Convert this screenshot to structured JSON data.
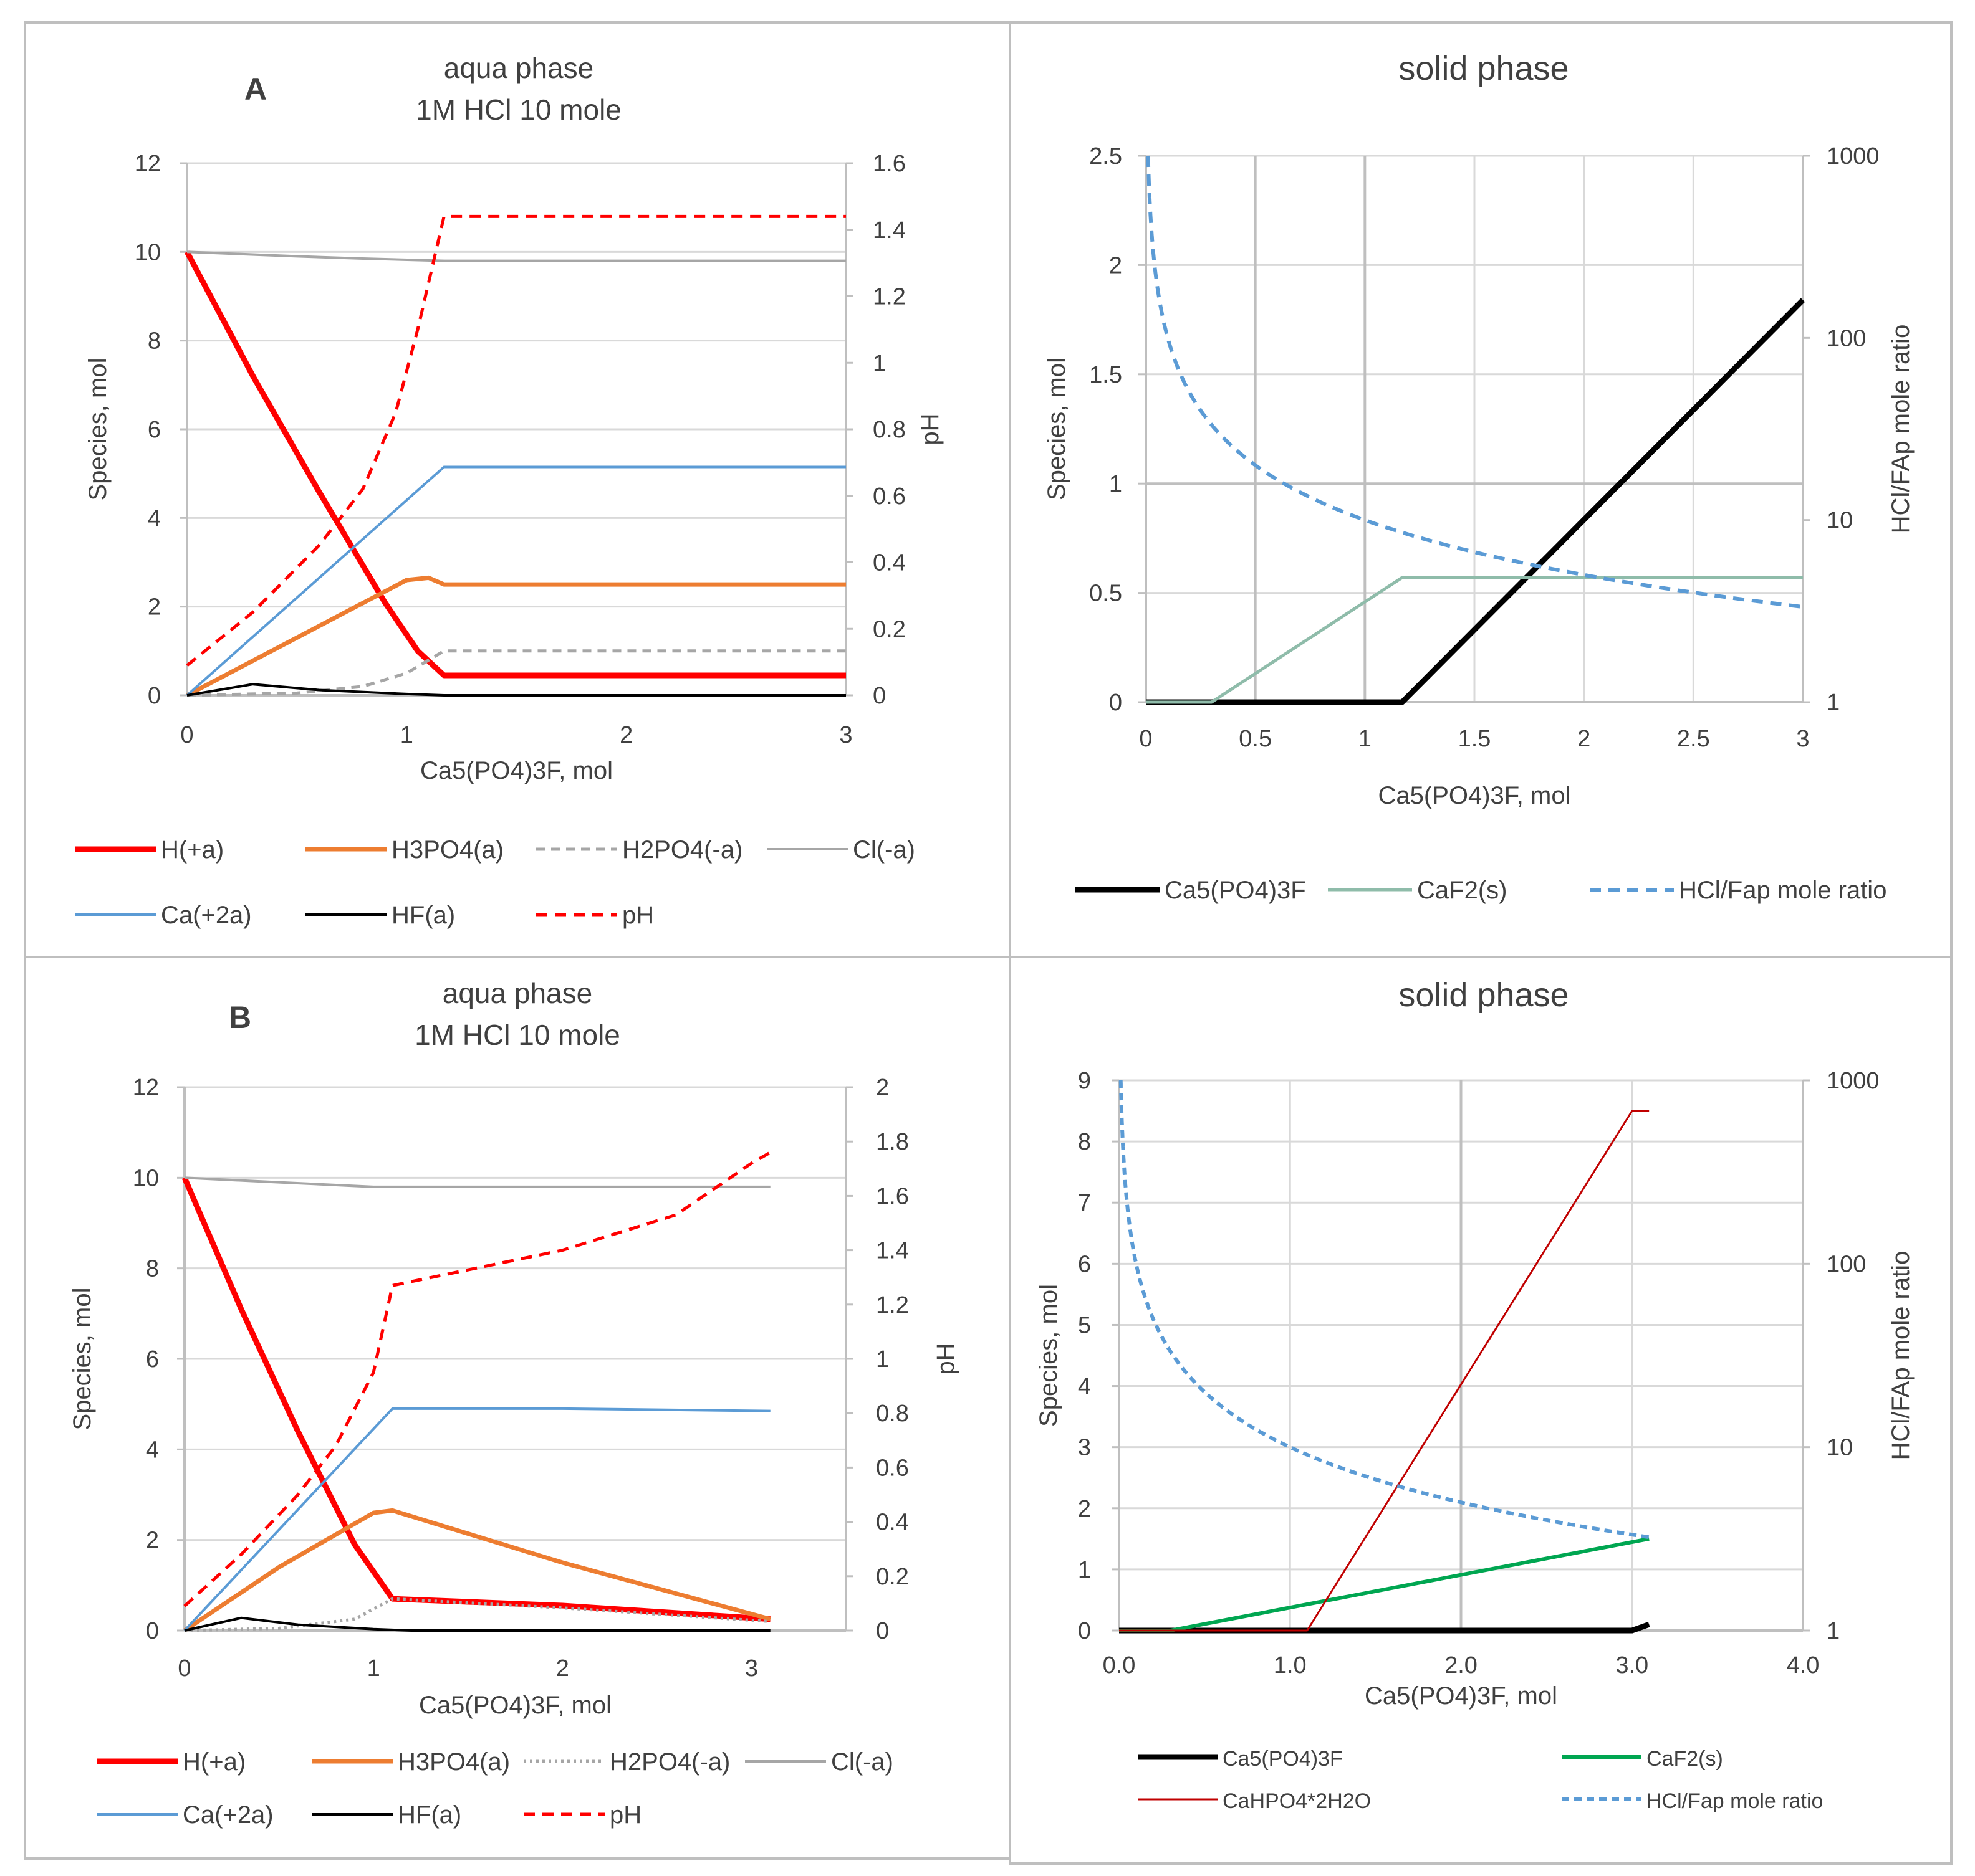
{
  "figure": {
    "panels": [
      {
        "label": "A"
      },
      {
        "label": ""
      },
      {
        "label": "B"
      },
      {
        "label": ""
      }
    ]
  },
  "colors": {
    "red": "#ff0000",
    "orange": "#ed7d31",
    "gray_dash": "#a6a6a6",
    "gray": "#a6a6a6",
    "blue": "#5b9bd5",
    "black": "#000000",
    "teal": "#8fbcaa",
    "green": "#00a651",
    "darkred": "#c00000"
  },
  "chart_data": [
    {
      "id": "A-aqua",
      "type": "line",
      "panel_label": "A",
      "title": "aqua phase",
      "subtitle": "1M HCl 10 mole",
      "xlabel": "Ca5(PO4)3F, mol",
      "ylabel": "Species, mol",
      "y2label": "pH",
      "xlim": [
        0,
        3
      ],
      "ylim": [
        0,
        12
      ],
      "y2lim": [
        0,
        1.6
      ],
      "xticks": [
        0,
        1,
        2,
        3
      ],
      "yticks": [
        0,
        2,
        4,
        6,
        8,
        10,
        12
      ],
      "y2ticks": [
        0,
        0.2,
        0.4,
        0.6,
        0.8,
        1,
        1.2,
        1.4,
        1.6
      ],
      "y2tick_labels": [
        "0",
        "0.2",
        "0.4",
        "0.6",
        "0.8",
        "1",
        "1.2",
        "1.4",
        "1.6"
      ],
      "legend_cols": 4,
      "series": [
        {
          "name": "H(+a)",
          "axis": "y",
          "color": "#ff0000",
          "width": 9,
          "dash": "",
          "x": [
            0,
            0.3,
            0.6,
            0.9,
            1.05,
            1.17,
            3
          ],
          "y": [
            10,
            7.2,
            4.6,
            2.1,
            1.0,
            0.45,
            0.45
          ]
        },
        {
          "name": "H3PO4(a)",
          "axis": "y",
          "color": "#ed7d31",
          "width": 7,
          "dash": "",
          "x": [
            0,
            0.5,
            1.0,
            1.1,
            1.17,
            3
          ],
          "y": [
            0,
            1.3,
            2.6,
            2.65,
            2.5,
            2.5
          ]
        },
        {
          "name": "H2PO4(-a)",
          "axis": "y",
          "color": "#a6a6a6",
          "width": 5,
          "dash": "14 10",
          "x": [
            0,
            0.5,
            0.8,
            1.0,
            1.17,
            3
          ],
          "y": [
            0,
            0.05,
            0.2,
            0.5,
            1.0,
            1.0
          ]
        },
        {
          "name": "Cl(-a)",
          "axis": "y",
          "color": "#a6a6a6",
          "width": 4,
          "dash": "",
          "x": [
            0,
            0.5,
            0.8,
            1.17,
            3
          ],
          "y": [
            10,
            9.9,
            9.85,
            9.8,
            9.8
          ]
        },
        {
          "name": "Ca(+2a)",
          "axis": "y",
          "color": "#5b9bd5",
          "width": 4,
          "dash": "",
          "x": [
            0,
            1.17,
            3
          ],
          "y": [
            0,
            5.15,
            5.15
          ]
        },
        {
          "name": "HF(a)",
          "axis": "y",
          "color": "#000000",
          "width": 4,
          "dash": "",
          "x": [
            0,
            0.3,
            0.6,
            1.0,
            1.17,
            3
          ],
          "y": [
            0,
            0.25,
            0.12,
            0.03,
            0,
            0
          ]
        },
        {
          "name": "pH",
          "axis": "y2",
          "color": "#ff0000",
          "width": 5,
          "dash": "18 12",
          "x": [
            0,
            0.3,
            0.6,
            0.8,
            0.95,
            1.05,
            1.17,
            3
          ],
          "y": [
            0.09,
            0.25,
            0.45,
            0.62,
            0.85,
            1.1,
            1.44,
            1.44
          ]
        }
      ]
    },
    {
      "id": "A-solid",
      "type": "line",
      "panel_label": "",
      "title": "solid phase",
      "subtitle": "",
      "xlabel": "Ca5(PO4)3F, mol",
      "ylabel": "Species, mol",
      "y2label": "HCl/FAp mole ratio",
      "xlim": [
        0,
        3
      ],
      "ylim": [
        0,
        2.5
      ],
      "y2lim": [
        1,
        1000
      ],
      "y2log": true,
      "xticks": [
        0,
        0.5,
        1,
        1.5,
        2,
        2.5,
        3
      ],
      "yticks": [
        0,
        0.5,
        1,
        1.5,
        2,
        2.5
      ],
      "y2ticks": [
        1,
        10,
        100,
        1000
      ],
      "y2tick_labels": [
        "1",
        "10",
        "100",
        "1000"
      ],
      "legend_cols": 3,
      "series": [
        {
          "name": "Ca5(PO4)3F",
          "axis": "y",
          "color": "#000000",
          "width": 9,
          "dash": "",
          "x": [
            0,
            1.17,
            3
          ],
          "y": [
            0,
            0,
            1.84
          ]
        },
        {
          "name": "CaF2(s)",
          "axis": "y",
          "color": "#8fbcaa",
          "width": 5,
          "dash": "",
          "x": [
            0,
            0.3,
            1.17,
            3
          ],
          "y": [
            0,
            0,
            0.57,
            0.57
          ]
        },
        {
          "name": "HCl/Fap mole ratio",
          "axis": "y2",
          "color": "#5b9bd5",
          "width": 6,
          "dash": "18 12",
          "fn": "10/x",
          "x_from": 0.01,
          "x_to": 3
        }
      ]
    },
    {
      "id": "B-aqua",
      "type": "line",
      "panel_label": "B",
      "title": "aqua phase",
      "subtitle": "1M HCl  10 mole",
      "xlabel": "Ca5(PO4)3F, mol",
      "ylabel": "Species, mol",
      "y2label": "pH",
      "xlim": [
        0,
        3.5
      ],
      "ylim": [
        0,
        12
      ],
      "y2lim": [
        0,
        2
      ],
      "xticks": [
        0,
        1,
        2,
        3
      ],
      "yticks": [
        0,
        2,
        4,
        6,
        8,
        10,
        12
      ],
      "y2ticks": [
        0,
        0.2,
        0.4,
        0.6,
        0.8,
        1,
        1.2,
        1.4,
        1.6,
        1.8,
        2
      ],
      "y2tick_labels": [
        "0",
        "0.2",
        "0.4",
        "0.6",
        "0.8",
        "1",
        "1.2",
        "1.4",
        "1.6",
        "1.8",
        "2"
      ],
      "legend_cols": 4,
      "series": [
        {
          "name": "H(+a)",
          "axis": "y",
          "color": "#ff0000",
          "width": 9,
          "dash": "",
          "x": [
            0,
            0.3,
            0.6,
            0.9,
            1.1,
            2,
            3.1
          ],
          "y": [
            10,
            7.1,
            4.4,
            1.9,
            0.7,
            0.55,
            0.25
          ]
        },
        {
          "name": "H3PO4(a)",
          "axis": "y",
          "color": "#ed7d31",
          "width": 7,
          "dash": "",
          "x": [
            0,
            0.5,
            1.0,
            1.1,
            2,
            3.1
          ],
          "y": [
            0,
            1.4,
            2.6,
            2.65,
            1.5,
            0.25
          ]
        },
        {
          "name": "H2PO4(-a)",
          "axis": "y",
          "color": "#a6a6a6",
          "width": 5,
          "dash": "4 6",
          "x": [
            0,
            0.5,
            0.9,
            1.1,
            2,
            3.1
          ],
          "y": [
            0,
            0.05,
            0.25,
            0.7,
            0.5,
            0.2
          ]
        },
        {
          "name": "Cl(-a)",
          "axis": "y",
          "color": "#a6a6a6",
          "width": 4,
          "dash": "",
          "x": [
            0,
            0.5,
            1.0,
            2,
            3.1
          ],
          "y": [
            10,
            9.9,
            9.8,
            9.8,
            9.8
          ]
        },
        {
          "name": "Ca(+2a)",
          "axis": "y",
          "color": "#5b9bd5",
          "width": 4,
          "dash": "",
          "x": [
            0,
            1.1,
            2,
            3.1
          ],
          "y": [
            0,
            4.9,
            4.9,
            4.85
          ]
        },
        {
          "name": "HF(a)",
          "axis": "y",
          "color": "#000000",
          "width": 4,
          "dash": "",
          "x": [
            0,
            0.3,
            0.6,
            1.0,
            1.2,
            3.1
          ],
          "y": [
            0,
            0.28,
            0.13,
            0.03,
            0,
            0
          ]
        },
        {
          "name": "pH",
          "axis": "y2",
          "color": "#ff0000",
          "width": 5,
          "dash": "18 12",
          "x": [
            0,
            0.3,
            0.6,
            0.8,
            1.0,
            1.1,
            2,
            2.6,
            3.0,
            3.1
          ],
          "y": [
            0.09,
            0.28,
            0.5,
            0.68,
            0.95,
            1.27,
            1.4,
            1.53,
            1.72,
            1.76
          ]
        }
      ]
    },
    {
      "id": "B-solid",
      "type": "line",
      "panel_label": "",
      "title": "solid phase",
      "subtitle": "",
      "xlabel": "Ca5(PO4)3F, mol",
      "ylabel": "Species, mol",
      "y2label": "HCl/FAp mole ratio",
      "xlim": [
        0,
        4
      ],
      "ylim": [
        0,
        9
      ],
      "y2lim": [
        1,
        1000
      ],
      "y2log": true,
      "xticks": [
        0,
        1,
        2,
        3,
        4
      ],
      "xtick_labels": [
        "0.0",
        "1.0",
        "2.0",
        "3.0",
        "4.0"
      ],
      "yticks": [
        0,
        1,
        2,
        3,
        4,
        5,
        6,
        7,
        8,
        9
      ],
      "y2ticks": [
        1,
        10,
        100,
        1000
      ],
      "y2tick_labels": [
        "1",
        "10",
        "100",
        "1000"
      ],
      "legend_cols": 2,
      "series": [
        {
          "name": "Ca5(PO4)3F",
          "axis": "y",
          "color": "#000000",
          "width": 9,
          "dash": "",
          "x": [
            0,
            3.0,
            3.1
          ],
          "y": [
            0,
            0,
            0.1
          ]
        },
        {
          "name": "CaF2(s)",
          "axis": "y",
          "color": "#00a651",
          "width": 6,
          "dash": "",
          "x": [
            0,
            0.3,
            3.1
          ],
          "y": [
            0,
            0,
            1.5
          ]
        },
        {
          "name": "CaHPO4*2H2O",
          "axis": "y",
          "color": "#c00000",
          "width": 3,
          "dash": "",
          "x": [
            0,
            1.1,
            3.0,
            3.1
          ],
          "y": [
            0,
            0,
            8.5,
            8.5
          ]
        },
        {
          "name": "HCl/Fap mole ratio",
          "axis": "y2",
          "color": "#5b9bd5",
          "width": 6,
          "dash": "12 8",
          "fn": "10/x",
          "x_from": 0.01,
          "x_to": 3.1
        }
      ]
    }
  ]
}
